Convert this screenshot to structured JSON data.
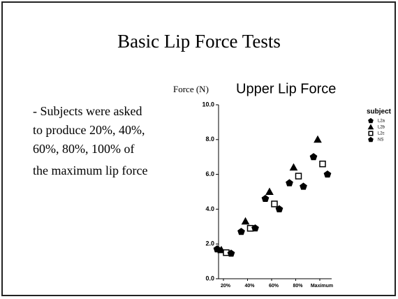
{
  "slide": {
    "title": "Basic Lip Force Tests",
    "bullet": [
      "- Subjects were asked",
      "to produce 20%, 40%,",
      "60%, 80%, 100% of",
      "the maximum lip force"
    ]
  },
  "chart_data": {
    "type": "scatter",
    "title": "Upper Lip Force",
    "y_label": "Force (N)",
    "categories": [
      "20%",
      "40%",
      "60%",
      "80%",
      "Maximum"
    ],
    "legend_title": "subject",
    "series": [
      {
        "name": "L2a",
        "marker": "pentagon",
        "color": "#000000",
        "values": [
          1.7,
          2.7,
          4.6,
          5.5,
          7.0
        ]
      },
      {
        "name": "L2b",
        "marker": "triangle",
        "color": "#000000",
        "values": [
          1.65,
          3.3,
          5.0,
          6.4,
          8.0
        ]
      },
      {
        "name": "L2c",
        "marker": "square",
        "color": "#000000",
        "values": [
          1.5,
          2.9,
          4.3,
          5.9,
          6.6
        ]
      },
      {
        "name": "NS",
        "marker": "pentagon",
        "color": "#000000",
        "values": [
          1.45,
          2.9,
          4.0,
          5.3,
          6.0
        ]
      }
    ],
    "ylim": [
      0,
      10
    ],
    "yticks": [
      {
        "value": 0,
        "label": "0.0"
      },
      {
        "value": 2,
        "label": "2.0"
      },
      {
        "value": 4,
        "label": "4.0"
      },
      {
        "value": 6,
        "label": "6.0"
      },
      {
        "value": 8,
        "label": "8.0"
      },
      {
        "value": 10,
        "label": "10.0"
      }
    ],
    "legend": "right"
  }
}
